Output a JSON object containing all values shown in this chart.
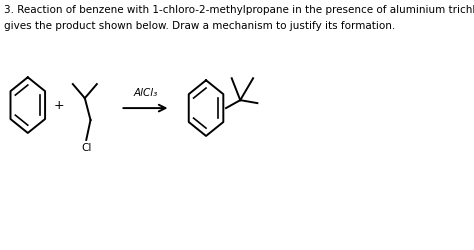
{
  "title_line1": "3. Reaction of benzene with 1-chloro-2-methylpropane in the presence of aluminium trichloride",
  "title_line2": "gives the product shown below. Draw a mechanism to justify its formation.",
  "catalyst": "AlCl₃",
  "plus_sign": "+",
  "cl_label": "Cl",
  "background_color": "#ffffff",
  "text_color": "#000000",
  "title_fontsize": 7.5,
  "struct_color": "#000000",
  "lw": 1.4,
  "fig_w": 4.74,
  "fig_h": 2.5,
  "dpi": 100
}
